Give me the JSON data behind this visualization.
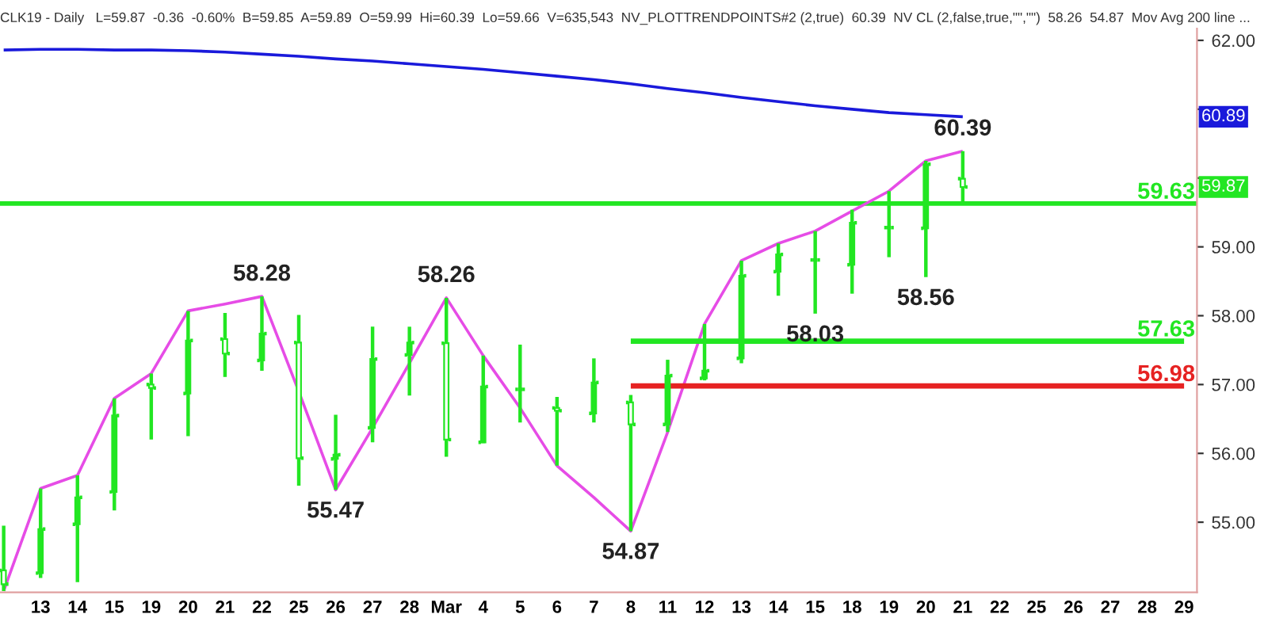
{
  "chart_data": {
    "type": "candlestick",
    "title": "CLK19 - Daily   L=59.87  -0.36  -0.60%  B=59.85  A=59.89  O=59.99  Hi=60.39  Lo=59.66  V=635,543  NV_PLOTTRENDPOINTS#2 (2,true)  60.39  NV CL (2,false,true,\"\",\"\")  58.26  54.87  Mov Avg 200 line ...",
    "categories": [
      null,
      "13",
      "14",
      "15",
      "19",
      "20",
      "21",
      "22",
      "25",
      "26",
      "27",
      "28",
      "Mar",
      "4",
      "5",
      "6",
      "7",
      "8",
      "11",
      "12",
      "13",
      "14",
      "15",
      "18",
      "19",
      "20",
      "21",
      "22",
      "25",
      "26",
      "27",
      "28",
      "29"
    ],
    "color": "#22e622",
    "ohlc": [
      [
        54.3,
        54.95,
        54.0,
        54.1
      ],
      [
        54.26,
        55.49,
        54.19,
        54.9
      ],
      [
        54.97,
        55.68,
        54.13,
        55.36
      ],
      [
        55.44,
        56.8,
        55.17,
        56.55
      ],
      [
        57.0,
        57.16,
        56.2,
        56.95
      ],
      [
        56.87,
        58.07,
        56.25,
        57.64
      ],
      [
        57.66,
        58.04,
        57.11,
        57.45
      ],
      [
        57.35,
        58.28,
        57.2,
        57.74
      ],
      [
        57.61,
        58.01,
        55.53,
        55.93
      ],
      [
        55.92,
        56.56,
        55.47,
        55.98
      ],
      [
        56.37,
        57.84,
        56.16,
        57.37
      ],
      [
        57.43,
        57.84,
        56.84,
        57.61
      ],
      [
        57.6,
        58.26,
        55.95,
        56.2
      ],
      [
        56.16,
        57.42,
        56.15,
        56.97
      ],
      [
        56.93,
        57.58,
        56.45,
        56.93
      ],
      [
        56.66,
        56.82,
        55.82,
        56.62
      ],
      [
        56.58,
        57.38,
        56.45,
        57.03
      ],
      [
        56.74,
        56.85,
        54.87,
        56.42
      ],
      [
        56.42,
        57.36,
        56.31,
        57.13
      ],
      [
        57.09,
        57.88,
        57.06,
        57.2
      ],
      [
        57.38,
        58.8,
        57.31,
        58.58
      ],
      [
        58.64,
        59.05,
        58.29,
        58.89
      ],
      [
        58.81,
        59.23,
        58.03,
        58.81
      ],
      [
        58.74,
        59.54,
        58.32,
        59.35
      ],
      [
        59.28,
        59.81,
        58.85,
        59.28
      ],
      [
        59.27,
        60.25,
        58.56,
        60.2
      ],
      [
        59.99,
        60.39,
        59.66,
        59.87
      ],
      null,
      null,
      null,
      null,
      null,
      null
    ],
    "series": [
      {
        "type": "line",
        "color": "#e64ce6",
        "values": [
          54.0,
          55.49,
          55.68,
          56.8,
          57.16,
          58.07,
          58.17,
          58.28,
          56.9,
          55.47,
          56.37,
          57.31,
          58.26,
          57.42,
          56.66,
          55.82,
          55.36,
          54.87,
          56.31,
          57.88,
          58.8,
          59.05,
          59.23,
          59.52,
          59.81,
          60.25,
          60.39,
          null,
          null,
          null,
          null,
          null,
          null
        ]
      },
      {
        "type": "line",
        "color": "#1a1adb",
        "values": [
          61.86,
          61.87,
          61.87,
          61.86,
          61.86,
          61.85,
          61.83,
          61.8,
          61.77,
          61.73,
          61.7,
          61.66,
          61.62,
          61.58,
          61.53,
          61.48,
          61.43,
          61.37,
          61.3,
          61.24,
          61.17,
          61.11,
          61.05,
          61.0,
          60.95,
          60.92,
          60.89,
          null,
          null,
          null,
          null,
          null,
          null
        ]
      },
      {
        "type": "line",
        "name": "57.63",
        "color": "#22e622",
        "values": [
          null,
          null,
          null,
          null,
          null,
          null,
          null,
          null,
          null,
          null,
          null,
          null,
          null,
          null,
          null,
          null,
          null,
          57.63,
          57.63,
          57.63,
          57.63,
          57.63,
          57.63,
          57.63,
          57.63,
          57.63,
          57.63,
          57.63,
          57.63,
          57.63,
          57.63,
          57.63,
          57.63
        ]
      },
      {
        "type": "line",
        "name": "56.98",
        "color": "#e62222",
        "values": [
          null,
          null,
          null,
          null,
          null,
          null,
          null,
          null,
          null,
          null,
          null,
          null,
          null,
          null,
          null,
          null,
          null,
          56.98,
          56.98,
          56.98,
          56.98,
          56.98,
          56.98,
          56.98,
          56.98,
          56.98,
          56.98,
          56.98,
          56.98,
          56.98,
          56.98,
          56.98,
          56.98
        ]
      }
    ],
    "ref_lines": [
      {
        "axis": "y",
        "value": 59.63,
        "label": "59.63",
        "color": "#22e622"
      }
    ],
    "annotations": [
      {
        "text": "58.28",
        "x": "22",
        "y": 58.28
      },
      {
        "text": "55.47",
        "x": "26",
        "y": 55.47
      },
      {
        "text": "58.26",
        "x": "Mar",
        "y": 58.26
      },
      {
        "text": "54.87",
        "x": "8",
        "y": 54.87
      },
      {
        "text": "58.03",
        "y": 58.03
      },
      {
        "text": "58.56",
        "y": 58.56
      },
      {
        "text": "60.39",
        "y": 60.39
      },
      {
        "text": "60.89",
        "y": 60.89
      },
      {
        "text": "59.87",
        "y": 59.87
      }
    ],
    "ylim": [
      53.98,
      62.17
    ],
    "yticks": [
      {
        "value": 55,
        "label": "55.00"
      },
      {
        "value": 56,
        "label": "56.00"
      },
      {
        "value": 57,
        "label": "57.00"
      },
      {
        "value": 58,
        "label": "58.00"
      },
      {
        "value": 59,
        "label": "59.00"
      },
      {
        "value": 60,
        "label": null
      },
      {
        "value": 61,
        "label": null
      },
      {
        "value": 62,
        "label": "62.00"
      }
    ],
    "grid": false
  }
}
